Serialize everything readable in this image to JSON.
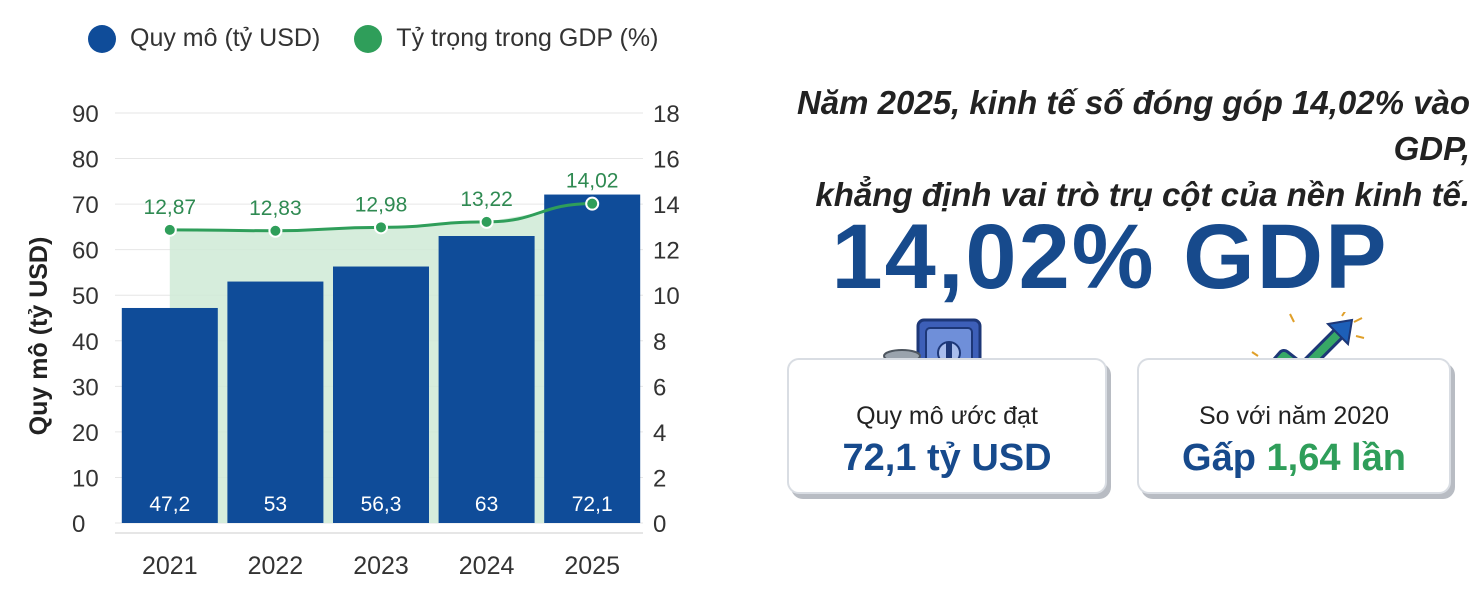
{
  "legend": {
    "bar_label": "Quy mô (tỷ USD)",
    "line_label": "Tỷ trọng trong GDP (%)"
  },
  "colors": {
    "bar": "#0f4c99",
    "line": "#2f9e5a",
    "area": "#cfead6",
    "accent": "#174a8c"
  },
  "chart_data": {
    "type": "bar",
    "categories": [
      "2021",
      "2022",
      "2023",
      "2024",
      "2025"
    ],
    "series": [
      {
        "name": "Quy mô (tỷ USD)",
        "type": "bar",
        "axis": "left",
        "values": [
          47.2,
          53,
          56.3,
          63,
          72.1
        ],
        "labels": [
          "47,2",
          "53",
          "56,3",
          "63",
          "72,1"
        ]
      },
      {
        "name": "Tỷ trọng trong GDP (%)",
        "type": "line",
        "axis": "right",
        "values": [
          12.87,
          12.83,
          12.98,
          13.22,
          14.02
        ],
        "labels": [
          "12,87",
          "12,83",
          "12,98",
          "13,22",
          "14,02"
        ]
      }
    ],
    "ylabel": "Quy mô (tỷ USD)",
    "y2label": "Tỷ trọng trong GDP (%)",
    "ylim": [
      0,
      90
    ],
    "y2lim": [
      0,
      18
    ],
    "yticks": [
      "0",
      "10",
      "20",
      "30",
      "40",
      "50",
      "60",
      "70",
      "80",
      "90"
    ],
    "y2ticks": [
      "0",
      "2",
      "4",
      "6",
      "8",
      "10",
      "12",
      "14",
      "16",
      "18"
    ],
    "grid": true,
    "legend_position": "top-left"
  },
  "headline": {
    "line1": "Năm 2025, kinh tế số đóng góp 14,02% vào GDP,",
    "line2": "khẳng định vai trò trụ cột của nền kinh tế."
  },
  "big_stat": "14,02% GDP",
  "card1": {
    "label": "Quy mô ước đạt",
    "value": "72,1 tỷ USD",
    "icon": "safe-coins-icon"
  },
  "card2": {
    "label": "So với năm 2020",
    "value_prefix": "Gấp ",
    "value_number": "1,64 lần",
    "icon": "trend-arrow-icon"
  }
}
